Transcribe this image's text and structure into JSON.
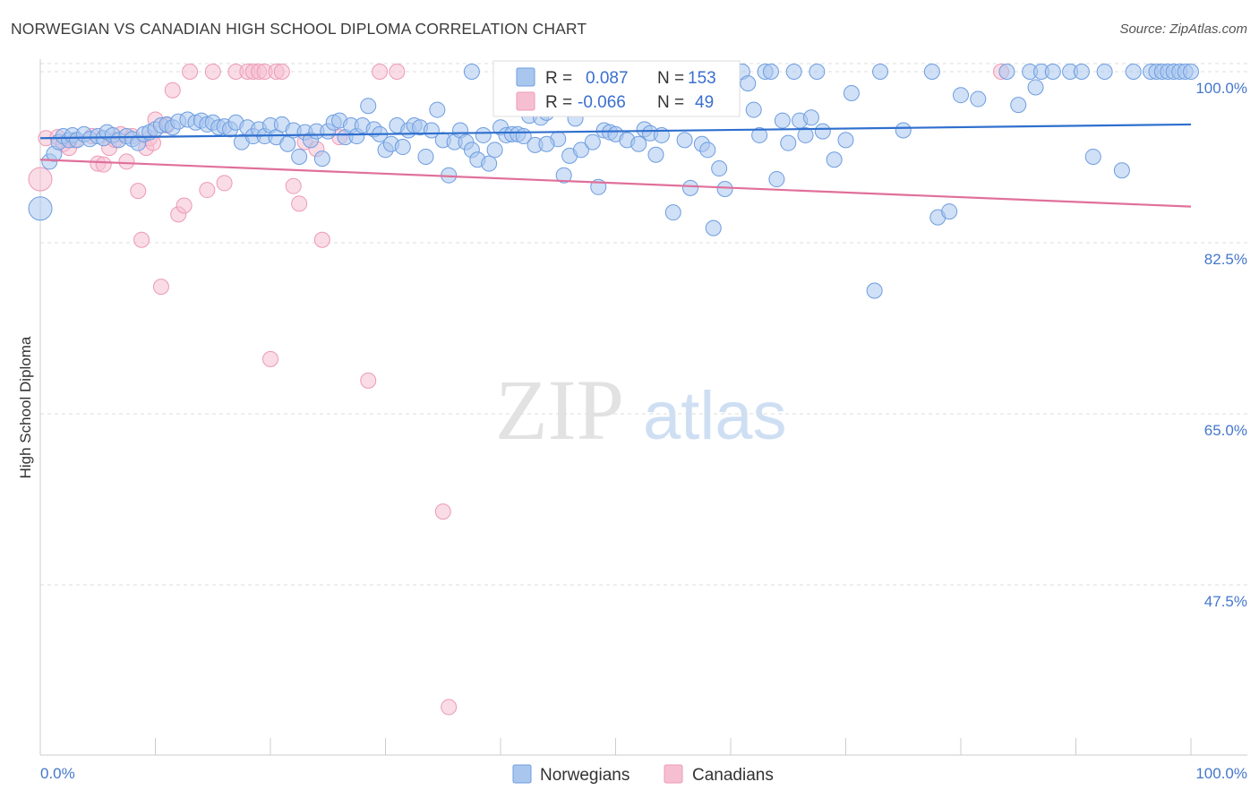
{
  "title": "NORWEGIAN VS CANADIAN HIGH SCHOOL DIPLOMA CORRELATION CHART",
  "source": "Source: ZipAtlas.com",
  "watermark": {
    "zip": "ZIP",
    "atlas": "atlas"
  },
  "colors": {
    "blue_fill": "#a9c6ee",
    "blue_stroke": "#6d9de0",
    "blue_line": "#2f6fce",
    "pink_fill": "#f6bfd1",
    "pink_stroke": "#ec9ab6",
    "pink_line": "#e0709a",
    "grid": "#dddddd",
    "tick_text": "#4477cc"
  },
  "legend_box": {
    "rows": [
      {
        "r_label": "R =",
        "r_value": "0.087",
        "n_label": "N =",
        "n_value": "153"
      },
      {
        "r_label": "R =",
        "r_value": "-0.066",
        "n_label": "N =",
        "n_value": "49"
      }
    ]
  },
  "chart_data": {
    "type": "scatter",
    "title": "NORWEGIAN VS CANADIAN HIGH SCHOOL DIPLOMA CORRELATION CHART",
    "xlabel": "",
    "ylabel": "High School Diploma",
    "xlim": [
      0,
      100
    ],
    "ylim": [
      32,
      102
    ],
    "x_tick_labels": [
      "0.0%",
      "100.0%"
    ],
    "y_ticks": [
      {
        "value": 100.0,
        "label": "100.0%"
      },
      {
        "value": 82.5,
        "label": "82.5%"
      },
      {
        "value": 65.0,
        "label": "65.0%"
      },
      {
        "value": 47.5,
        "label": "47.5%"
      }
    ],
    "grid": true,
    "series": [
      {
        "name": "Norwegians",
        "r": 0.087,
        "n": 153,
        "trend": [
          [
            0,
            93.2
          ],
          [
            100,
            94.6
          ]
        ],
        "points": [
          [
            0.0,
            86.0
          ],
          [
            0.8,
            90.8
          ],
          [
            1.2,
            91.6
          ],
          [
            1.6,
            92.8
          ],
          [
            2.0,
            93.4
          ],
          [
            2.5,
            93.0
          ],
          [
            2.8,
            93.5
          ],
          [
            3.2,
            93.0
          ],
          [
            3.8,
            93.6
          ],
          [
            4.3,
            93.1
          ],
          [
            5.0,
            93.4
          ],
          [
            5.5,
            93.2
          ],
          [
            5.8,
            93.8
          ],
          [
            6.3,
            93.5
          ],
          [
            6.8,
            93.0
          ],
          [
            7.5,
            93.4
          ],
          [
            8.0,
            93.1
          ],
          [
            8.5,
            92.7
          ],
          [
            9.0,
            93.6
          ],
          [
            9.5,
            93.8
          ],
          [
            10.0,
            94.1
          ],
          [
            10.5,
            94.5
          ],
          [
            11.0,
            94.6
          ],
          [
            11.5,
            94.3
          ],
          [
            12.0,
            94.9
          ],
          [
            12.8,
            95.1
          ],
          [
            13.5,
            94.8
          ],
          [
            14.0,
            95.0
          ],
          [
            14.5,
            94.6
          ],
          [
            15.0,
            94.8
          ],
          [
            15.5,
            94.3
          ],
          [
            16.0,
            94.4
          ],
          [
            16.5,
            94.1
          ],
          [
            17.0,
            94.8
          ],
          [
            17.5,
            92.8
          ],
          [
            18.0,
            94.3
          ],
          [
            18.5,
            93.4
          ],
          [
            19.0,
            94.1
          ],
          [
            19.5,
            93.4
          ],
          [
            20.0,
            94.5
          ],
          [
            20.5,
            93.3
          ],
          [
            21.0,
            94.6
          ],
          [
            21.5,
            92.6
          ],
          [
            22.0,
            94.0
          ],
          [
            22.5,
            91.3
          ],
          [
            23.0,
            93.8
          ],
          [
            23.5,
            93.0
          ],
          [
            24.0,
            93.9
          ],
          [
            24.5,
            91.1
          ],
          [
            25.0,
            93.9
          ],
          [
            25.5,
            94.8
          ],
          [
            26.0,
            95.0
          ],
          [
            26.5,
            93.3
          ],
          [
            27.0,
            94.5
          ],
          [
            27.5,
            93.4
          ],
          [
            28.0,
            94.5
          ],
          [
            28.5,
            96.5
          ],
          [
            29.0,
            94.1
          ],
          [
            29.5,
            93.6
          ],
          [
            30.0,
            92.0
          ],
          [
            30.5,
            92.6
          ],
          [
            31.0,
            94.5
          ],
          [
            31.5,
            92.3
          ],
          [
            32.0,
            94.0
          ],
          [
            32.5,
            94.5
          ],
          [
            33.0,
            94.3
          ],
          [
            33.5,
            91.3
          ],
          [
            34.0,
            94.0
          ],
          [
            34.5,
            96.1
          ],
          [
            35.0,
            93.0
          ],
          [
            35.5,
            89.4
          ],
          [
            36.0,
            92.8
          ],
          [
            36.5,
            94.0
          ],
          [
            37.0,
            92.8
          ],
          [
            37.5,
            92.0
          ],
          [
            38.0,
            91.0
          ],
          [
            38.5,
            93.5
          ],
          [
            39.0,
            90.6
          ],
          [
            39.5,
            92.0
          ],
          [
            40.0,
            94.3
          ],
          [
            40.5,
            93.5
          ],
          [
            41.0,
            93.6
          ],
          [
            41.5,
            93.6
          ],
          [
            42.0,
            93.4
          ],
          [
            42.5,
            95.5
          ],
          [
            43.0,
            92.5
          ],
          [
            43.5,
            95.3
          ],
          [
            44.0,
            95.8
          ],
          [
            45.0,
            93.1
          ],
          [
            45.5,
            89.4
          ],
          [
            46.0,
            91.4
          ],
          [
            46.5,
            95.2
          ],
          [
            47.0,
            92.0
          ],
          [
            48.0,
            92.8
          ],
          [
            48.5,
            88.2
          ],
          [
            49.0,
            94.0
          ],
          [
            49.5,
            93.8
          ],
          [
            50.0,
            93.6
          ],
          [
            51.0,
            93.0
          ],
          [
            52.0,
            92.6
          ],
          [
            52.5,
            94.1
          ],
          [
            53.0,
            93.7
          ],
          [
            54.0,
            93.5
          ],
          [
            55.0,
            85.6
          ],
          [
            56.0,
            93.0
          ],
          [
            56.5,
            88.1
          ],
          [
            57.5,
            92.6
          ],
          [
            58.5,
            84.0
          ],
          [
            59.0,
            90.1
          ],
          [
            59.5,
            88.0
          ],
          [
            60.0,
            100.0
          ],
          [
            61.0,
            100.0
          ],
          [
            61.5,
            98.8
          ],
          [
            62.0,
            96.1
          ],
          [
            63.0,
            100.0
          ],
          [
            63.5,
            100.0
          ],
          [
            64.0,
            89.0
          ],
          [
            65.0,
            92.7
          ],
          [
            65.5,
            100.0
          ],
          [
            66.0,
            95.0
          ],
          [
            66.5,
            93.5
          ],
          [
            67.5,
            100.0
          ],
          [
            68.0,
            93.9
          ],
          [
            69.0,
            91.0
          ],
          [
            70.0,
            93.0
          ],
          [
            70.5,
            97.8
          ],
          [
            72.5,
            77.6
          ],
          [
            73.0,
            100.0
          ],
          [
            75.0,
            94.0
          ],
          [
            77.5,
            100.0
          ],
          [
            78.0,
            85.1
          ],
          [
            79.0,
            85.7
          ],
          [
            80.0,
            97.6
          ],
          [
            81.5,
            97.2
          ],
          [
            84.0,
            100.0
          ],
          [
            85.0,
            96.6
          ],
          [
            86.0,
            100.0
          ],
          [
            86.5,
            98.4
          ],
          [
            87.0,
            100.0
          ],
          [
            88.0,
            100.0
          ],
          [
            89.5,
            100.0
          ],
          [
            90.5,
            100.0
          ],
          [
            91.5,
            91.3
          ],
          [
            92.5,
            100.0
          ],
          [
            94.0,
            89.9
          ],
          [
            95.0,
            100.0
          ],
          [
            96.5,
            100.0
          ],
          [
            97.0,
            100.0
          ],
          [
            97.5,
            100.0
          ],
          [
            98.0,
            100.0
          ],
          [
            98.5,
            100.0
          ],
          [
            99.0,
            100.0
          ],
          [
            99.5,
            100.0
          ],
          [
            100.0,
            100.0
          ],
          [
            44.0,
            92.6
          ],
          [
            47.0,
            100.0
          ],
          [
            51.5,
            100.0
          ],
          [
            37.5,
            100.0
          ],
          [
            53.5,
            91.5
          ],
          [
            58.0,
            92.0
          ],
          [
            62.5,
            93.5
          ],
          [
            64.5,
            95.0
          ],
          [
            67.0,
            95.3
          ]
        ]
      },
      {
        "name": "Canadians",
        "r": -0.066,
        "n": 49,
        "trend": [
          [
            0,
            91.0
          ],
          [
            100,
            86.2
          ]
        ],
        "points": [
          [
            0.0,
            89.0
          ],
          [
            0.5,
            93.2
          ],
          [
            1.5,
            93.3
          ],
          [
            2.0,
            92.6
          ],
          [
            2.5,
            92.2
          ],
          [
            3.0,
            93.0
          ],
          [
            4.5,
            93.4
          ],
          [
            5.0,
            90.6
          ],
          [
            5.5,
            90.5
          ],
          [
            6.0,
            92.2
          ],
          [
            6.5,
            93.0
          ],
          [
            7.0,
            93.6
          ],
          [
            7.5,
            90.8
          ],
          [
            8.0,
            93.4
          ],
          [
            8.5,
            87.8
          ],
          [
            8.8,
            82.8
          ],
          [
            9.2,
            92.2
          ],
          [
            9.5,
            93.2
          ],
          [
            9.8,
            92.7
          ],
          [
            10.0,
            95.1
          ],
          [
            10.5,
            78.0
          ],
          [
            11.0,
            94.5
          ],
          [
            11.5,
            98.1
          ],
          [
            12.0,
            85.4
          ],
          [
            12.5,
            86.3
          ],
          [
            13.0,
            100.0
          ],
          [
            14.5,
            87.9
          ],
          [
            15.0,
            100.0
          ],
          [
            16.0,
            88.6
          ],
          [
            17.0,
            100.0
          ],
          [
            18.0,
            100.0
          ],
          [
            18.5,
            100.0
          ],
          [
            19.0,
            100.0
          ],
          [
            19.5,
            100.0
          ],
          [
            20.0,
            70.6
          ],
          [
            20.5,
            100.0
          ],
          [
            21.0,
            100.0
          ],
          [
            22.0,
            88.3
          ],
          [
            22.5,
            86.5
          ],
          [
            23.0,
            92.8
          ],
          [
            24.0,
            92.1
          ],
          [
            24.5,
            82.8
          ],
          [
            26.0,
            93.3
          ],
          [
            28.5,
            68.4
          ],
          [
            29.5,
            100.0
          ],
          [
            31.0,
            100.0
          ],
          [
            35.0,
            55.0
          ],
          [
            35.5,
            35.0
          ],
          [
            83.5,
            100.0
          ]
        ]
      }
    ]
  },
  "bottom_legend": [
    {
      "label": "Norwegians"
    },
    {
      "label": "Canadians"
    }
  ]
}
